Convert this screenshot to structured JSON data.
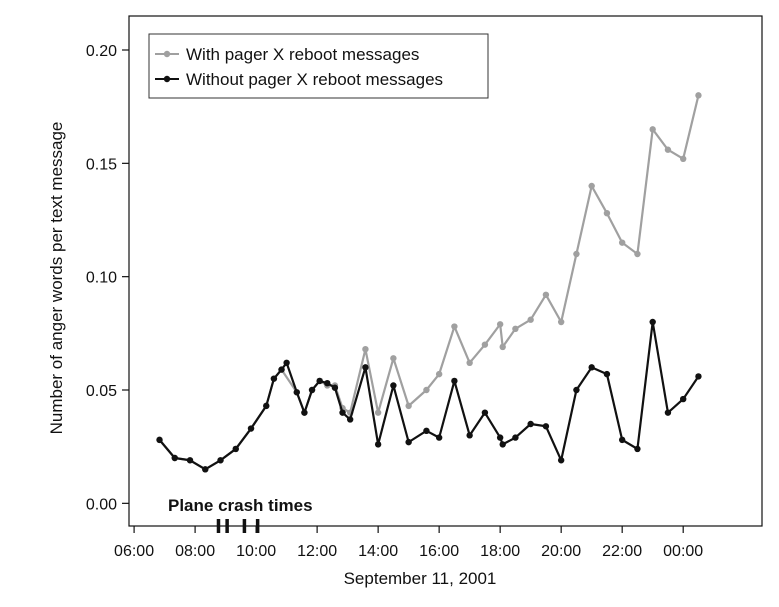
{
  "chart_data": {
    "type": "line",
    "title": "",
    "xlabel": "September 11, 2001",
    "ylabel": "Number of anger words per text message",
    "xlim": [
      "05:50",
      "26:35"
    ],
    "ylim": [
      -0.01,
      0.215
    ],
    "x_ticks": [
      "06:00",
      "08:00",
      "10:00",
      "12:00",
      "14:00",
      "16:00",
      "18:00",
      "20:00",
      "22:00",
      "00:00"
    ],
    "y_ticks": [
      "0.00",
      "0.05",
      "0.10",
      "0.15",
      "0.20"
    ],
    "y_tick_values": [
      0,
      0.05,
      0.1,
      0.15,
      0.2
    ],
    "grid": false,
    "legend_position": "top-left",
    "annotation": {
      "label": "Plane crash times",
      "times": [
        "08:46",
        "09:03",
        "09:37",
        "10:03"
      ]
    },
    "series": [
      {
        "name": "With pager X reboot messages",
        "color": "#a0a0a0",
        "x": [
          "06:50",
          "07:20",
          "07:50",
          "08:20",
          "08:50",
          "09:20",
          "09:50",
          "10:20",
          "10:35",
          "10:50",
          "11:20",
          "11:35",
          "11:50",
          "12:05",
          "12:20",
          "12:35",
          "12:50",
          "13:05",
          "13:35",
          "14:00",
          "14:30",
          "15:00",
          "15:35",
          "16:00",
          "16:30",
          "17:00",
          "17:30",
          "18:00",
          "18:05",
          "18:30",
          "19:00",
          "19:30",
          "20:00",
          "20:30",
          "21:00",
          "21:30",
          "22:00",
          "22:30",
          "23:00",
          "23:30",
          "24:00",
          "24:30"
        ],
        "values": [
          0.028,
          0.02,
          0.019,
          0.015,
          0.019,
          0.024,
          0.033,
          0.043,
          0.055,
          0.059,
          0.049,
          0.04,
          0.05,
          0.054,
          0.052,
          0.052,
          0.042,
          0.04,
          0.068,
          0.04,
          0.064,
          0.043,
          0.05,
          0.057,
          0.078,
          0.062,
          0.07,
          0.079,
          0.069,
          0.077,
          0.081,
          0.092,
          0.08,
          0.11,
          0.14,
          0.128,
          0.115,
          0.11,
          0.165,
          0.156,
          0.152,
          0.18
        ]
      },
      {
        "name": "Without pager X reboot messages",
        "color": "#111111",
        "x": [
          "06:50",
          "07:20",
          "07:50",
          "08:20",
          "08:50",
          "09:20",
          "09:50",
          "10:20",
          "10:35",
          "10:50",
          "11:00",
          "11:20",
          "11:35",
          "11:50",
          "12:05",
          "12:20",
          "12:35",
          "12:50",
          "13:05",
          "13:35",
          "14:00",
          "14:30",
          "15:00",
          "15:35",
          "16:00",
          "16:30",
          "17:00",
          "17:30",
          "18:00",
          "18:05",
          "18:30",
          "19:00",
          "19:30",
          "20:00",
          "20:30",
          "21:00",
          "21:30",
          "22:00",
          "22:30",
          "23:00",
          "23:30",
          "24:00",
          "24:30"
        ],
        "values": [
          0.028,
          0.02,
          0.019,
          0.015,
          0.019,
          0.024,
          0.033,
          0.043,
          0.055,
          0.059,
          0.062,
          0.049,
          0.04,
          0.05,
          0.054,
          0.053,
          0.051,
          0.04,
          0.037,
          0.06,
          0.026,
          0.052,
          0.027,
          0.032,
          0.029,
          0.054,
          0.03,
          0.04,
          0.029,
          0.026,
          0.029,
          0.035,
          0.034,
          0.019,
          0.05,
          0.06,
          0.057,
          0.028,
          0.024,
          0.08,
          0.04,
          0.046,
          0.056
        ]
      }
    ]
  }
}
